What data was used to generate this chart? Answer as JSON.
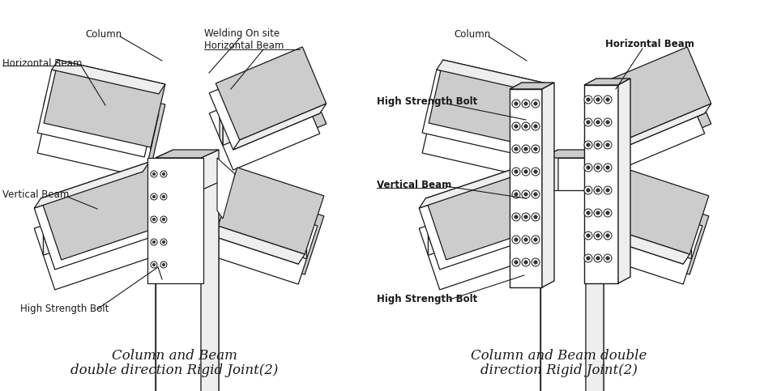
{
  "background_color": "#ffffff",
  "line_color": "#1a1a1a",
  "fill_white": "#ffffff",
  "fill_light": "#eeeeee",
  "fill_mid": "#cccccc",
  "fill_dark": "#aaaaaa",
  "title1_line1": "Column and Beam",
  "title1_line2": "double direction Rigid Joint(2)",
  "title2_line1": "Column and Beam double",
  "title2_line2": "direction Rigid Joint(2)",
  "font_size_label": 8.5,
  "font_size_title": 12
}
